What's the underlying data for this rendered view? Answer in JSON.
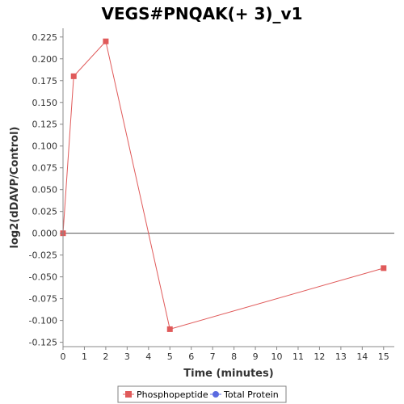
{
  "chart_data": {
    "type": "line",
    "title": "VEGS#PNQAK(+ 3)_v1",
    "xlabel": "Time (minutes)",
    "ylabel": "log2(dDAVP/Control)",
    "xlim": [
      0,
      15.5
    ],
    "ylim": [
      -0.13,
      0.235
    ],
    "x_ticks": [
      0,
      1,
      2,
      3,
      4,
      5,
      6,
      7,
      8,
      9,
      10,
      11,
      12,
      13,
      14,
      15
    ],
    "y_ticks": [
      -0.125,
      -0.1,
      -0.075,
      -0.05,
      -0.025,
      0.0,
      0.025,
      0.05,
      0.075,
      0.1,
      0.125,
      0.15,
      0.175,
      0.2,
      0.225
    ],
    "y_tick_labels": [
      "-0.125",
      "-0.100",
      "-0.075",
      "-0.050",
      "-0.025",
      "0.000",
      "0.025",
      "0.050",
      "0.075",
      "0.100",
      "0.125",
      "0.150",
      "0.175",
      "0.200",
      "0.225"
    ],
    "grid": false,
    "zero_line": true,
    "legend_position": "bottom",
    "series": [
      {
        "name": "Phosphopeptide",
        "color": "#e05a5a",
        "marker": "square",
        "x": [
          0,
          0.5,
          2,
          5,
          15
        ],
        "y": [
          0.0,
          0.18,
          0.22,
          -0.11,
          -0.04
        ]
      },
      {
        "name": "Total Protein",
        "color": "#5a6ae0",
        "marker": "circle",
        "x": [],
        "y": []
      }
    ]
  }
}
